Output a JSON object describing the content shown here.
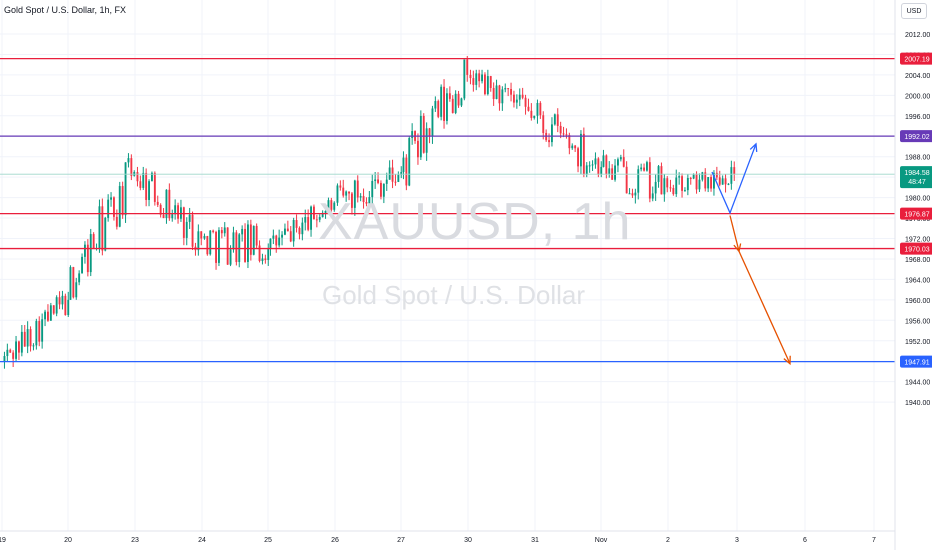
{
  "header": {
    "title": "Gold Spot / U.S. Dollar, 1h, FX",
    "currency_button": "USD"
  },
  "watermark": {
    "symbol": "XAUUSD, 1h",
    "description": "Gold Spot / U.S. Dollar"
  },
  "colors": {
    "up": "#089981",
    "down": "#f23645",
    "resistance": "#e91e3c",
    "pivot": "#673ab7",
    "support_major": "#2962ff",
    "projection_up": "#2962ff",
    "projection_down": "#e65100",
    "current_price": "#089981"
  },
  "chart_data": {
    "type": "candlestick",
    "symbol": "XAUUSD",
    "interval": "1h",
    "ylim": [
      1939,
      2014
    ],
    "price_axis_ticks": [
      2012.0,
      2008.0,
      2004.0,
      2000.0,
      1996.0,
      1992.0,
      1988.0,
      1984.0,
      1980.0,
      1976.0,
      1972.0,
      1968.0,
      1964.0,
      1960.0,
      1956.0,
      1952.0,
      1948.0,
      1944.0,
      1940.0
    ],
    "time_axis_labels": [
      "19",
      "20",
      "23",
      "24",
      "25",
      "26",
      "27",
      "30",
      "31",
      "Nov",
      "2",
      "3",
      "6",
      "7"
    ],
    "horizontal_levels": [
      {
        "label": "2007.19",
        "price": 2007.19,
        "color_key": "resistance"
      },
      {
        "label": "1992.02",
        "price": 1992.02,
        "color_key": "pivot"
      },
      {
        "label": "1976.87",
        "price": 1976.87,
        "color_key": "resistance"
      },
      {
        "label": "1970.03",
        "price": 1970.03,
        "color_key": "resistance"
      },
      {
        "label": "1947.91",
        "price": 1947.91,
        "color_key": "support_major"
      }
    ],
    "current_price": {
      "label": "1984.58",
      "countdown": "48:47",
      "price": 1984.58
    },
    "daily_ohlc_approx": [
      {
        "day": "19",
        "open": 1948,
        "high": 1962,
        "low": 1945,
        "close": 1960
      },
      {
        "day": "20",
        "open": 1962,
        "high": 1991,
        "low": 1960,
        "close": 1985
      },
      {
        "day": "23",
        "open": 1985,
        "high": 1986,
        "low": 1965,
        "close": 1972
      },
      {
        "day": "24",
        "open": 1972,
        "high": 1979,
        "low": 1954,
        "close": 1970
      },
      {
        "day": "25",
        "open": 1970,
        "high": 1980,
        "low": 1966,
        "close": 1979
      },
      {
        "day": "26",
        "open": 1979,
        "high": 1992,
        "low": 1973,
        "close": 1985
      },
      {
        "day": "27",
        "open": 1985,
        "high": 2010,
        "low": 1978,
        "close": 2004
      },
      {
        "day": "30",
        "open": 2004,
        "high": 2005,
        "low": 1990,
        "close": 1996
      },
      {
        "day": "31",
        "open": 1996,
        "high": 2008,
        "low": 1984,
        "close": 1986
      },
      {
        "day": "Nov",
        "open": 1986,
        "high": 1992,
        "low": 1970,
        "close": 1982
      },
      {
        "day": "2",
        "open": 1982,
        "high": 1991,
        "low": 1980,
        "close": 1984.58
      }
    ],
    "projections": [
      {
        "color_key": "projection_up",
        "points": [
          {
            "x": "2",
            "y": 1985
          },
          {
            "x": "3",
            "y": 1977
          },
          {
            "x": "3",
            "y": 1990.5
          }
        ]
      },
      {
        "color_key": "projection_down",
        "points": [
          {
            "x": "3",
            "y": 1976.5
          },
          {
            "x": "3",
            "y": 1969.5
          }
        ]
      },
      {
        "color_key": "projection_down",
        "points": [
          {
            "x": "3",
            "y": 1969.5
          },
          {
            "x": "6",
            "y": 1947.5
          }
        ]
      }
    ]
  }
}
